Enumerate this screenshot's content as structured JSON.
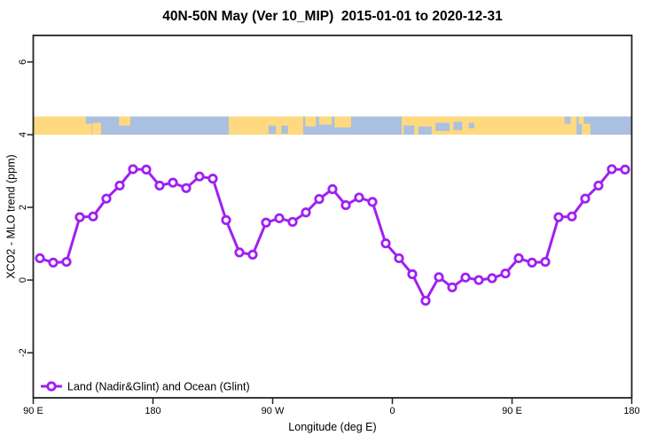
{
  "chart_data": {
    "type": "line",
    "title": "40N-50N May (Ver 10_MIP)  2015-01-01 to 2020-12-31",
    "xlabel": "Longitude (deg E)",
    "ylabel": "XCO2 - MLO trend (ppm)",
    "xlim": [
      90,
      540
    ],
    "ylim": [
      -3.24,
      6.73
    ],
    "x_ticks": [
      {
        "lon": 90,
        "label": "90 E"
      },
      {
        "lon": 180,
        "label": "180"
      },
      {
        "lon": 270,
        "label": "90 W"
      },
      {
        "lon": 360,
        "label": "0"
      },
      {
        "lon": 450,
        "label": "90 E"
      },
      {
        "lon": 540,
        "label": "180"
      }
    ],
    "y_ticks": [
      {
        "value": -2,
        "label": "-2"
      },
      {
        "value": 0,
        "label": "0"
      },
      {
        "value": 2,
        "label": "2"
      },
      {
        "value": 4,
        "label": "4"
      },
      {
        "value": 6,
        "label": "6"
      }
    ],
    "grid": false,
    "legend_position": "bottom-left",
    "series": [
      {
        "name": "Land (Nadir&Glint) and Ocean (Glint)",
        "color": "#A020F0",
        "marker": "open-circle",
        "x_cumulative_deg_east": [
          95,
          105,
          115,
          125,
          135,
          145,
          155,
          165,
          175,
          185,
          195,
          205,
          215,
          225,
          235,
          245,
          255,
          265,
          275,
          285,
          295,
          305,
          315,
          325,
          335,
          345,
          355,
          365,
          375,
          385,
          395,
          405,
          415,
          425,
          435,
          445,
          455,
          465,
          475,
          485,
          495,
          505,
          515,
          525,
          535
        ],
        "values": [
          0.6,
          0.48,
          0.5,
          1.73,
          1.75,
          2.24,
          2.6,
          3.05,
          3.04,
          2.6,
          2.68,
          2.53,
          2.85,
          2.79,
          1.65,
          0.76,
          0.7,
          1.58,
          1.7,
          1.6,
          1.86,
          2.23,
          2.5,
          2.06,
          2.27,
          2.15,
          1.01,
          0.6,
          0.16,
          -0.57,
          0.08,
          -0.2,
          0.07,
          0.0,
          0.05,
          0.18,
          0.6,
          0.48,
          0.5,
          1.73,
          1.75,
          2.24,
          2.6,
          3.05,
          3.04
        ]
      }
    ],
    "map_band": {
      "description": "world land/ocean strip for latitude 40N-50N",
      "y_range_ppm": [
        4.0,
        4.5
      ],
      "ocean_color": "#A9C0E0",
      "land_color": "#FFD97F",
      "land_segments": [
        {
          "from": 90,
          "to": 134,
          "top": 0,
          "height": 1
        },
        {
          "from": 134.5,
          "to": 141,
          "top": 0.35,
          "height": 0.65
        },
        {
          "from": 154.5,
          "to": 163,
          "top": 0,
          "height": 0.5
        },
        {
          "from": 237,
          "to": 293,
          "top": 0,
          "height": 1
        },
        {
          "from": 294.5,
          "to": 302.5,
          "top": 0,
          "height": 0.55
        },
        {
          "from": 305,
          "to": 314.5,
          "top": 0,
          "height": 0.45
        },
        {
          "from": 316.5,
          "to": 329,
          "top": 0,
          "height": 0.6
        },
        {
          "from": 367,
          "to": 498.5,
          "top": 0,
          "height": 1
        },
        {
          "from": 500,
          "to": 504,
          "top": 0,
          "height": 0.4
        },
        {
          "from": 502.5,
          "to": 509,
          "top": 0.4,
          "height": 0.6
        }
      ],
      "water_patches": [
        {
          "from": 129.5,
          "to": 134,
          "top": 0,
          "height": 0.4
        },
        {
          "from": 267,
          "to": 272.5,
          "top": 0.5,
          "height": 0.45
        },
        {
          "from": 276.5,
          "to": 281.5,
          "top": 0.5,
          "height": 0.45
        },
        {
          "from": 368.5,
          "to": 376.5,
          "top": 0.5,
          "height": 0.5
        },
        {
          "from": 379.5,
          "to": 389.5,
          "top": 0.55,
          "height": 0.45
        },
        {
          "from": 392.5,
          "to": 403,
          "top": 0.35,
          "height": 0.45
        },
        {
          "from": 406,
          "to": 412.5,
          "top": 0.3,
          "height": 0.45
        },
        {
          "from": 417.5,
          "to": 421.5,
          "top": 0.35,
          "height": 0.3
        },
        {
          "from": 489.5,
          "to": 494,
          "top": 0,
          "height": 0.4
        }
      ]
    },
    "colors": {
      "axis": "#222222",
      "background": "#FFFFFF"
    }
  }
}
